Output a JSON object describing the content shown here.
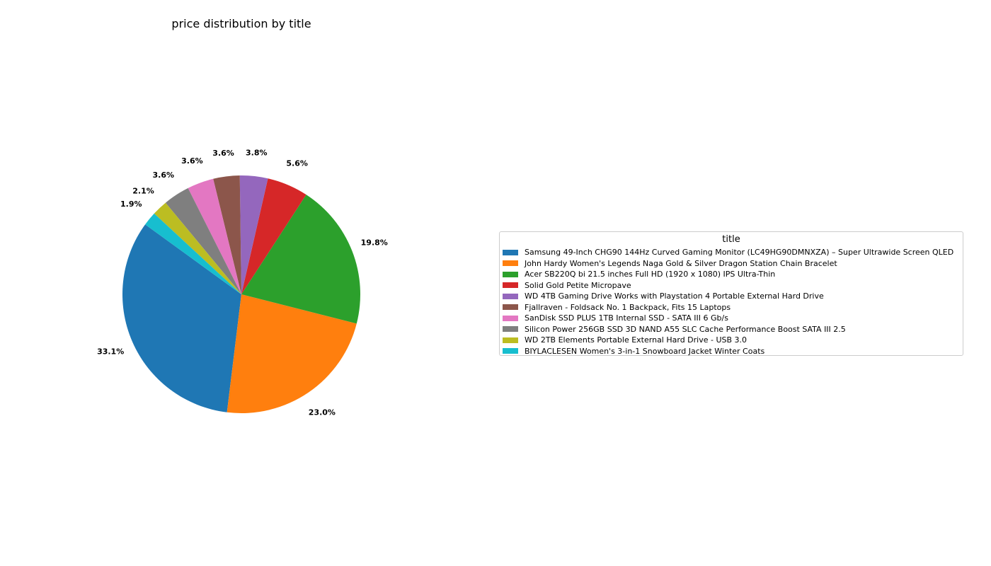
{
  "chart_data": {
    "type": "pie",
    "title": "price distribution by title",
    "legend_title": "title",
    "legend_placement": "right",
    "start_angle_deg": 144,
    "direction": "counterclockwise",
    "slices": [
      {
        "label": "Samsung 49-Inch CHG90 144Hz Curved Gaming Monitor (LC49HG90DMNXZA) – Super Ultrawide Screen QLED",
        "value": 33.1,
        "pct_label": "33.1%",
        "color": "#1f77b4"
      },
      {
        "label": "John Hardy Women's Legends Naga Gold & Silver Dragon Station Chain Bracelet",
        "value": 23.0,
        "pct_label": "23.0%",
        "color": "#ff7f0e"
      },
      {
        "label": "Acer SB220Q bi 21.5 inches Full HD (1920 x 1080) IPS Ultra-Thin",
        "value": 19.8,
        "pct_label": "19.8%",
        "color": "#2ca02c"
      },
      {
        "label": "Solid Gold Petite Micropave",
        "value": 5.6,
        "pct_label": "5.6%",
        "color": "#d62728"
      },
      {
        "label": "WD 4TB Gaming Drive Works with Playstation 4 Portable External Hard Drive",
        "value": 3.8,
        "pct_label": "3.8%",
        "color": "#9467bd"
      },
      {
        "label": "Fjallraven - Foldsack No. 1 Backpack, Fits 15 Laptops",
        "value": 3.6,
        "pct_label": "3.6%",
        "color": "#8c564b"
      },
      {
        "label": "SanDisk SSD PLUS 1TB Internal SSD - SATA III 6 Gb/s",
        "value": 3.6,
        "pct_label": "3.6%",
        "color": "#e377c2"
      },
      {
        "label": "Silicon Power 256GB SSD 3D NAND A55 SLC Cache Performance Boost SATA III 2.5",
        "value": 3.6,
        "pct_label": "3.6%",
        "color": "#7f7f7f"
      },
      {
        "label": "WD 2TB Elements Portable External Hard Drive - USB 3.0",
        "value": 2.1,
        "pct_label": "2.1%",
        "color": "#bcbd22"
      },
      {
        "label": "BIYLACLESEN Women's 3-in-1 Snowboard Jacket Winter Coats",
        "value": 1.9,
        "pct_label": "1.9%",
        "color": "#17becf"
      }
    ]
  }
}
